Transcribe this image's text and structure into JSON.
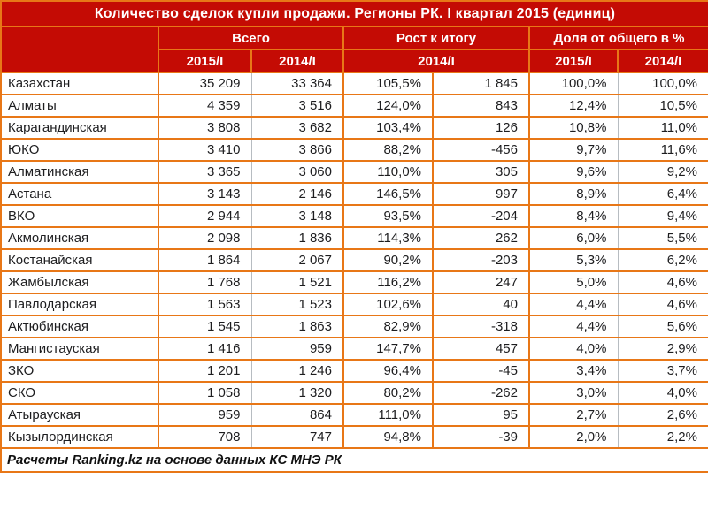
{
  "title": "Количество сделок купли продажи. Регионы РК. I квартал 2015 (единиц)",
  "footer": "Расчеты Ranking.kz на основе данных  КС МНЭ РК",
  "table": {
    "group_headers": [
      "Всего",
      "Рост к итогу",
      "Доля от общего в %"
    ],
    "year_headers": [
      "2015/I",
      "2014/I",
      "2014/I",
      "2015/I",
      "2014/I"
    ]
  },
  "colors": {
    "header_red": "#C40B04",
    "border_orange": "#E87717",
    "border_gray": "#B7BCC1",
    "header_text": "#FFFFFF",
    "body_text": "#1D1D1F",
    "background": "#FFFFFF"
  },
  "chart_data": {
    "type": "table",
    "title": "Количество сделок купли продажи. Регионы РК. I квартал 2015 (единиц)",
    "column_groups": [
      "",
      "Всего",
      "Всего",
      "Рост к итогу",
      "Рост к итогу",
      "Доля от общего в %",
      "Доля от общего в %"
    ],
    "columns": [
      "",
      "2015/I",
      "2014/I",
      "2014/I %",
      "2014/I",
      "2015/I",
      "2014/I"
    ],
    "rows": [
      [
        "Казахстан",
        "35 209",
        "33 364",
        "105,5%",
        "1 845",
        "100,0%",
        "100,0%"
      ],
      [
        "Алматы",
        "4 359",
        "3 516",
        "124,0%",
        "843",
        "12,4%",
        "10,5%"
      ],
      [
        "Карагандинская",
        "3 808",
        "3 682",
        "103,4%",
        "126",
        "10,8%",
        "11,0%"
      ],
      [
        "ЮКО",
        "3 410",
        "3 866",
        "88,2%",
        "-456",
        "9,7%",
        "11,6%"
      ],
      [
        "Алматинская",
        "3 365",
        "3 060",
        "110,0%",
        "305",
        "9,6%",
        "9,2%"
      ],
      [
        "Астана",
        "3 143",
        "2 146",
        "146,5%",
        "997",
        "8,9%",
        "6,4%"
      ],
      [
        "ВКО",
        "2 944",
        "3 148",
        "93,5%",
        "-204",
        "8,4%",
        "9,4%"
      ],
      [
        "Акмолинская",
        "2 098",
        "1 836",
        "114,3%",
        "262",
        "6,0%",
        "5,5%"
      ],
      [
        "Костанайская",
        "1 864",
        "2 067",
        "90,2%",
        "-203",
        "5,3%",
        "6,2%"
      ],
      [
        "Жамбылская",
        "1 768",
        "1 521",
        "116,2%",
        "247",
        "5,0%",
        "4,6%"
      ],
      [
        "Павлодарская",
        "1 563",
        "1 523",
        "102,6%",
        "40",
        "4,4%",
        "4,6%"
      ],
      [
        "Актюбинская",
        "1 545",
        "1 863",
        "82,9%",
        "-318",
        "4,4%",
        "5,6%"
      ],
      [
        "Мангистауская",
        "1 416",
        "959",
        "147,7%",
        "457",
        "4,0%",
        "2,9%"
      ],
      [
        "ЗКО",
        "1 201",
        "1 246",
        "96,4%",
        "-45",
        "3,4%",
        "3,7%"
      ],
      [
        "СКО",
        "1 058",
        "1 320",
        "80,2%",
        "-262",
        "3,0%",
        "4,0%"
      ],
      [
        "Атырауская",
        "959",
        "864",
        "111,0%",
        "95",
        "2,7%",
        "2,6%"
      ],
      [
        "Кызылординская",
        "708",
        "747",
        "94,8%",
        "-39",
        "2,0%",
        "2,2%"
      ]
    ],
    "source": "Расчеты Ranking.kz на основе данных КС МНЭ РК"
  }
}
